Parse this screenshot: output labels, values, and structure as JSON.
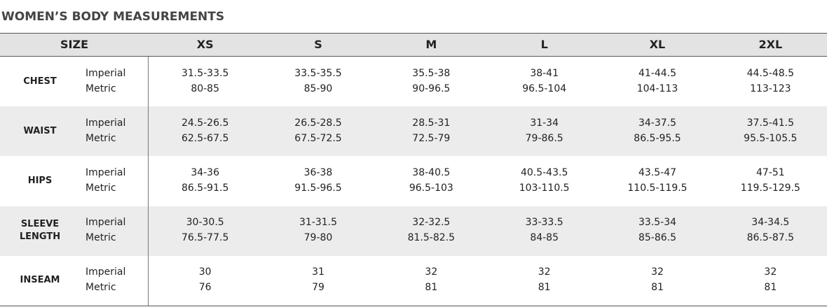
{
  "title": "WOMEN’S BODY MEASUREMENTS",
  "table": {
    "size_header": "SIZE",
    "sizes": [
      "XS",
      "S",
      "M",
      "L",
      "XL",
      "2XL"
    ],
    "rows": [
      {
        "label": "CHEST",
        "units": [
          "Imperial",
          "Metric"
        ],
        "imperial": [
          "31.5-33.5",
          "33.5-35.5",
          "35.5-38",
          "38-41",
          "41-44.5",
          "44.5-48.5"
        ],
        "metric": [
          "80-85",
          "85-90",
          "90-96.5",
          "96.5-104",
          "104-113",
          "113-123"
        ]
      },
      {
        "label": "WAIST",
        "units": [
          "Imperial",
          "Metric"
        ],
        "imperial": [
          "24.5-26.5",
          "26.5-28.5",
          "28.5-31",
          "31-34",
          "34-37.5",
          "37.5-41.5"
        ],
        "metric": [
          "62.5-67.5",
          "67.5-72.5",
          "72.5-79",
          "79-86.5",
          "86.5-95.5",
          "95.5-105.5"
        ]
      },
      {
        "label": "HIPS",
        "units": [
          "Imperial",
          "Metric"
        ],
        "imperial": [
          "34-36",
          "36-38",
          "38-40.5",
          "40.5-43.5",
          "43.5-47",
          "47-51"
        ],
        "metric": [
          "86.5-91.5",
          "91.5-96.5",
          "96.5-103",
          "103-110.5",
          "110.5-119.5",
          "119.5-129.5"
        ]
      },
      {
        "label": "SLEEVE LENGTH",
        "units": [
          "Imperial",
          "Metric"
        ],
        "imperial": [
          "30-30.5",
          "31-31.5",
          "32-32.5",
          "33-33.5",
          "33.5-34",
          "34-34.5"
        ],
        "metric": [
          "76.5-77.5",
          "79-80",
          "81.5-82.5",
          "84-85",
          "85-86.5",
          "86.5-87.5"
        ]
      },
      {
        "label": "INSEAM",
        "units": [
          "Imperial",
          "Metric"
        ],
        "imperial": [
          "30",
          "31",
          "32",
          "32",
          "32",
          "32"
        ],
        "metric": [
          "76",
          "79",
          "81",
          "81",
          "81",
          "81"
        ]
      }
    ]
  }
}
